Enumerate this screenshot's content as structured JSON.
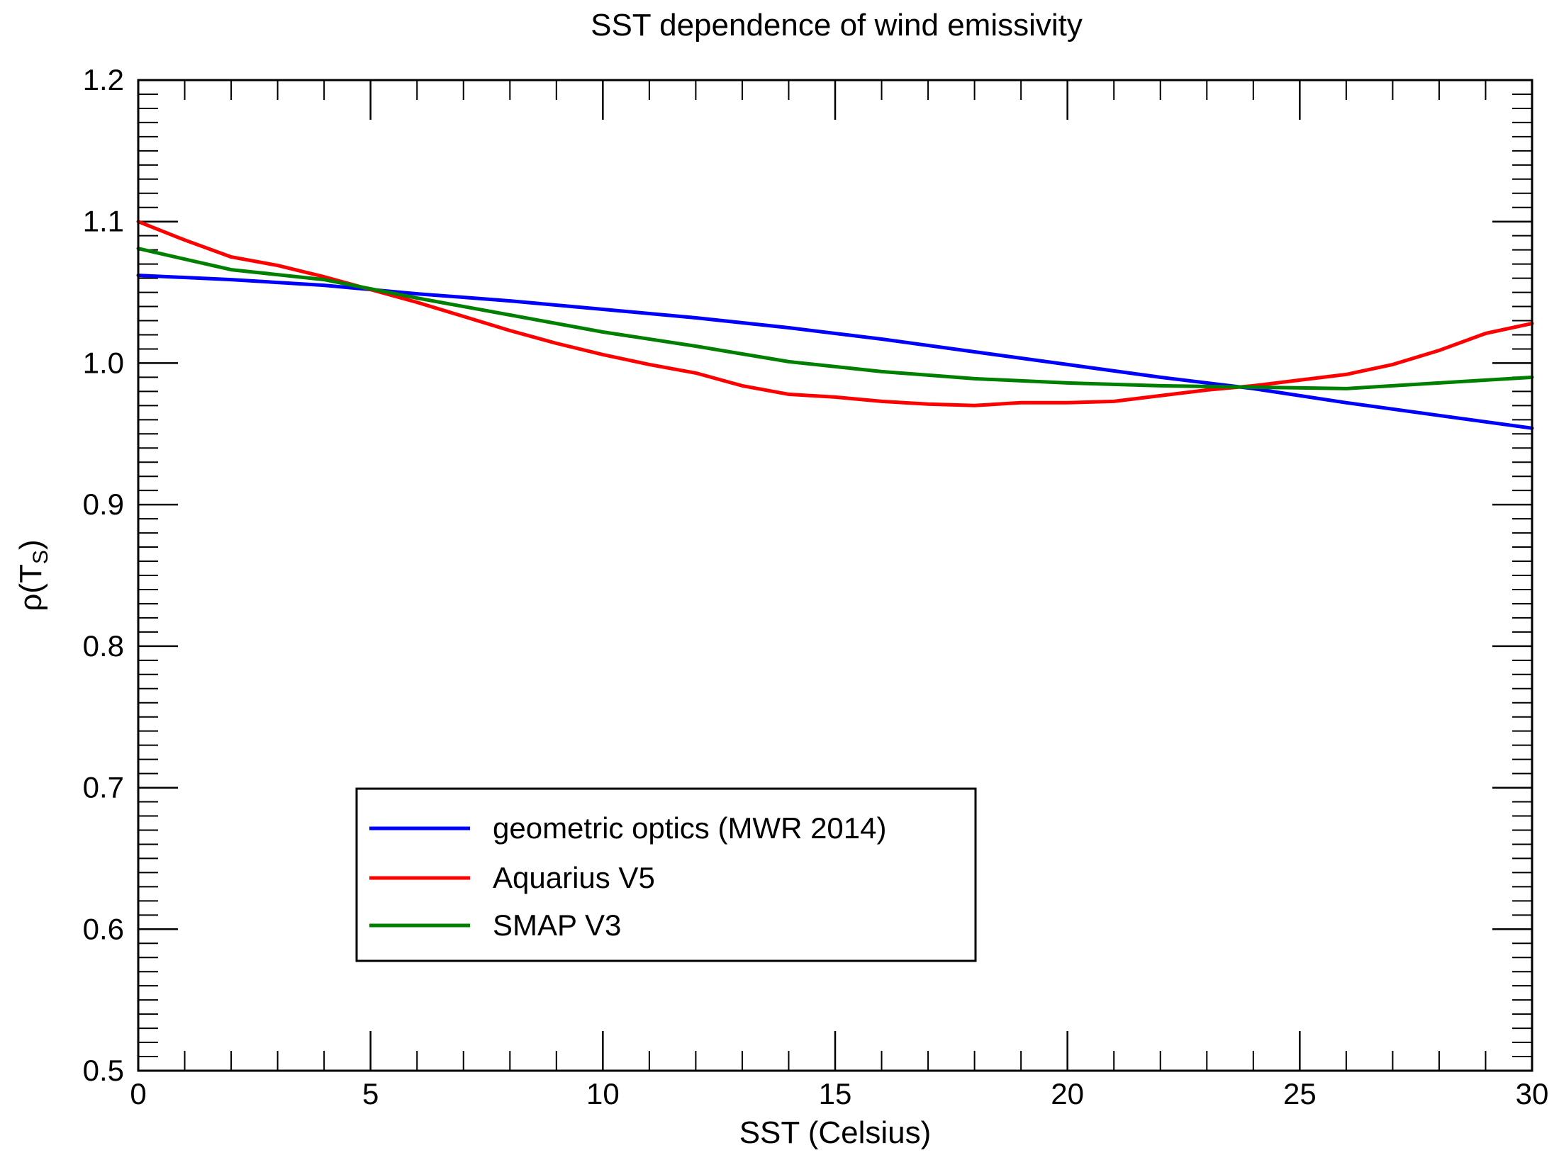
{
  "chart_data": {
    "type": "line",
    "title": "SST dependence of wind emissivity",
    "xlabel": "SST (Celsius)",
    "ylabel": {
      "main": "ρ(T",
      "sub": "S",
      "close": ")"
    },
    "xlim": [
      0,
      30
    ],
    "ylim": [
      0.5,
      1.2
    ],
    "xticks": [
      0,
      5,
      10,
      15,
      20,
      25,
      30
    ],
    "xtick_labels": [
      "0",
      "5",
      "10",
      "15",
      "20",
      "25",
      "30"
    ],
    "yticks": [
      0.5,
      0.6,
      0.7,
      0.8,
      0.9,
      1.0,
      1.1,
      1.2
    ],
    "ytick_labels": [
      "0.5",
      "0.6",
      "0.7",
      "0.8",
      "0.9",
      "1.0",
      "1.1",
      "1.2"
    ],
    "x_minor_step": 1,
    "y_minor_step": 0.01,
    "grid": false,
    "legend_position": "lower-left",
    "series": [
      {
        "name": "geometric optics (MWR 2014)",
        "color": "#0000ff",
        "x": [
          0,
          2,
          4,
          6,
          8,
          10,
          12,
          14,
          16,
          18,
          20,
          22,
          24,
          26,
          28,
          30
        ],
        "y": [
          1.062,
          1.059,
          1.055,
          1.049,
          1.044,
          1.038,
          1.032,
          1.025,
          1.017,
          1.008,
          0.999,
          0.99,
          0.982,
          0.972,
          0.963,
          0.954
        ]
      },
      {
        "name": "Aquarius V5",
        "color": "#ff0000",
        "x": [
          0,
          1,
          2,
          3,
          4,
          5,
          6,
          7,
          8,
          9,
          10,
          11,
          12,
          13,
          14,
          15,
          16,
          17,
          18,
          19,
          20,
          21,
          22,
          23,
          24,
          25,
          26,
          27,
          28,
          29,
          30
        ],
        "y": [
          1.1,
          1.087,
          1.075,
          1.069,
          1.061,
          1.052,
          1.043,
          1.033,
          1.023,
          1.014,
          1.006,
          0.999,
          0.993,
          0.984,
          0.978,
          0.976,
          0.973,
          0.971,
          0.97,
          0.972,
          0.972,
          0.973,
          0.977,
          0.981,
          0.984,
          0.988,
          0.992,
          0.999,
          1.009,
          1.021,
          1.028
        ]
      },
      {
        "name": "SMAP V3",
        "color": "#008000",
        "x": [
          0,
          2,
          4,
          6,
          8,
          10,
          12,
          14,
          16,
          18,
          20,
          22,
          24,
          26,
          28,
          30
        ],
        "y": [
          1.081,
          1.066,
          1.059,
          1.046,
          1.034,
          1.022,
          1.012,
          1.001,
          0.994,
          0.989,
          0.986,
          0.984,
          0.983,
          0.982,
          0.986,
          0.99
        ]
      }
    ]
  }
}
